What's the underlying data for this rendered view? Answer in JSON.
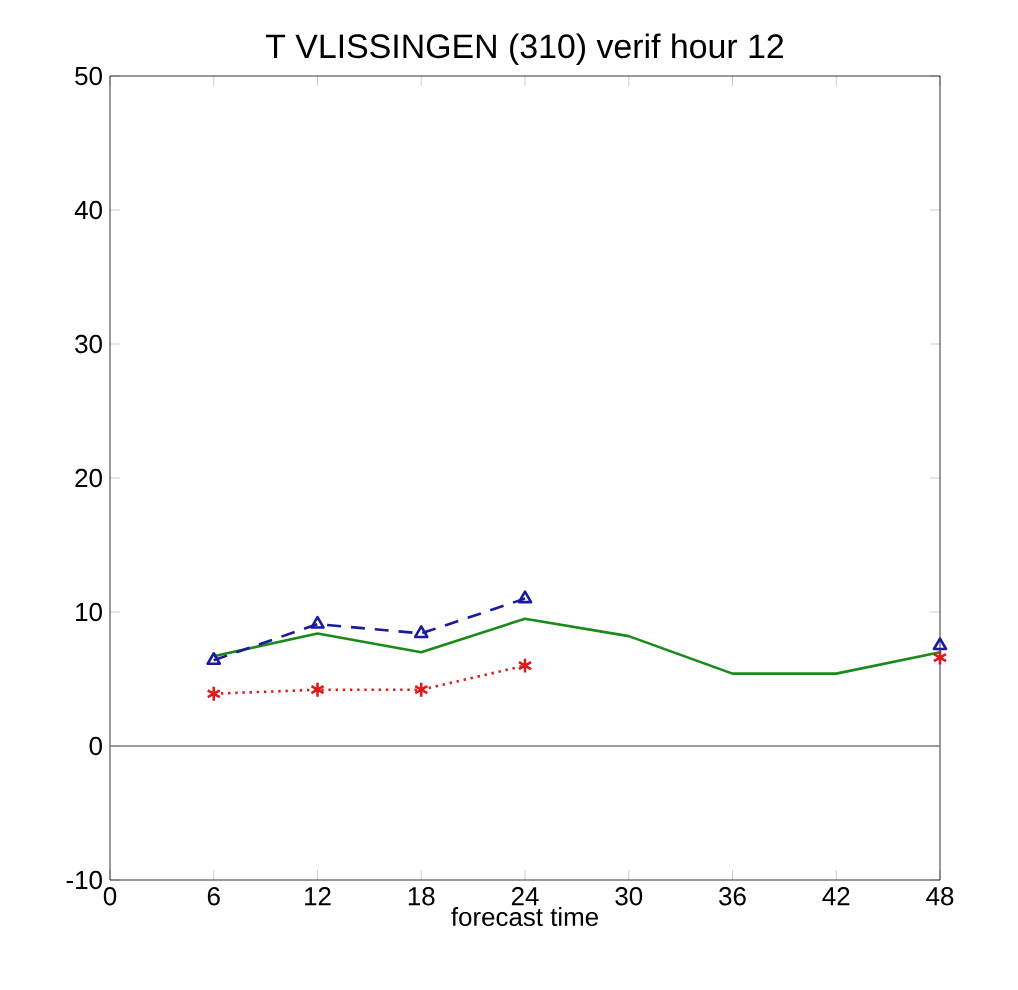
{
  "chart_data": {
    "type": "line",
    "title": "T    VLISSINGEN (310)  verif hour     12",
    "xlabel": "forecast time",
    "xlim": [
      0,
      48
    ],
    "xticks": [
      0,
      6,
      12,
      18,
      24,
      30,
      36,
      42,
      48
    ],
    "ylim": [
      -10,
      50
    ],
    "yticks": [
      -10,
      0,
      10,
      20,
      30,
      40,
      50
    ],
    "grid": false,
    "ref_lines": [
      {
        "axis": "y",
        "value": 0,
        "color": "#808080"
      }
    ],
    "series": [
      {
        "color": "#1a8a1a",
        "line_style": "solid",
        "marker": "none",
        "x": [
          6,
          12,
          18,
          24,
          30,
          36,
          42,
          48
        ],
        "values": [
          6.7,
          8.4,
          7.0,
          9.5,
          8.2,
          5.4,
          5.4,
          7.0
        ]
      },
      {
        "color": "#1a1a9a",
        "line_style": "dashed",
        "marker": "triangle",
        "x": [
          6,
          12,
          18,
          24,
          30,
          36,
          42,
          48
        ],
        "values": [
          6.4,
          9.1,
          8.4,
          11.0,
          null,
          null,
          null,
          7.5
        ]
      },
      {
        "color": "#e01a1a",
        "line_style": "dotted",
        "marker": "cross",
        "x": [
          6,
          12,
          18,
          24,
          30,
          36,
          42,
          48
        ],
        "values": [
          3.9,
          4.2,
          4.2,
          6.0,
          null,
          null,
          null,
          6.6
        ]
      }
    ]
  }
}
